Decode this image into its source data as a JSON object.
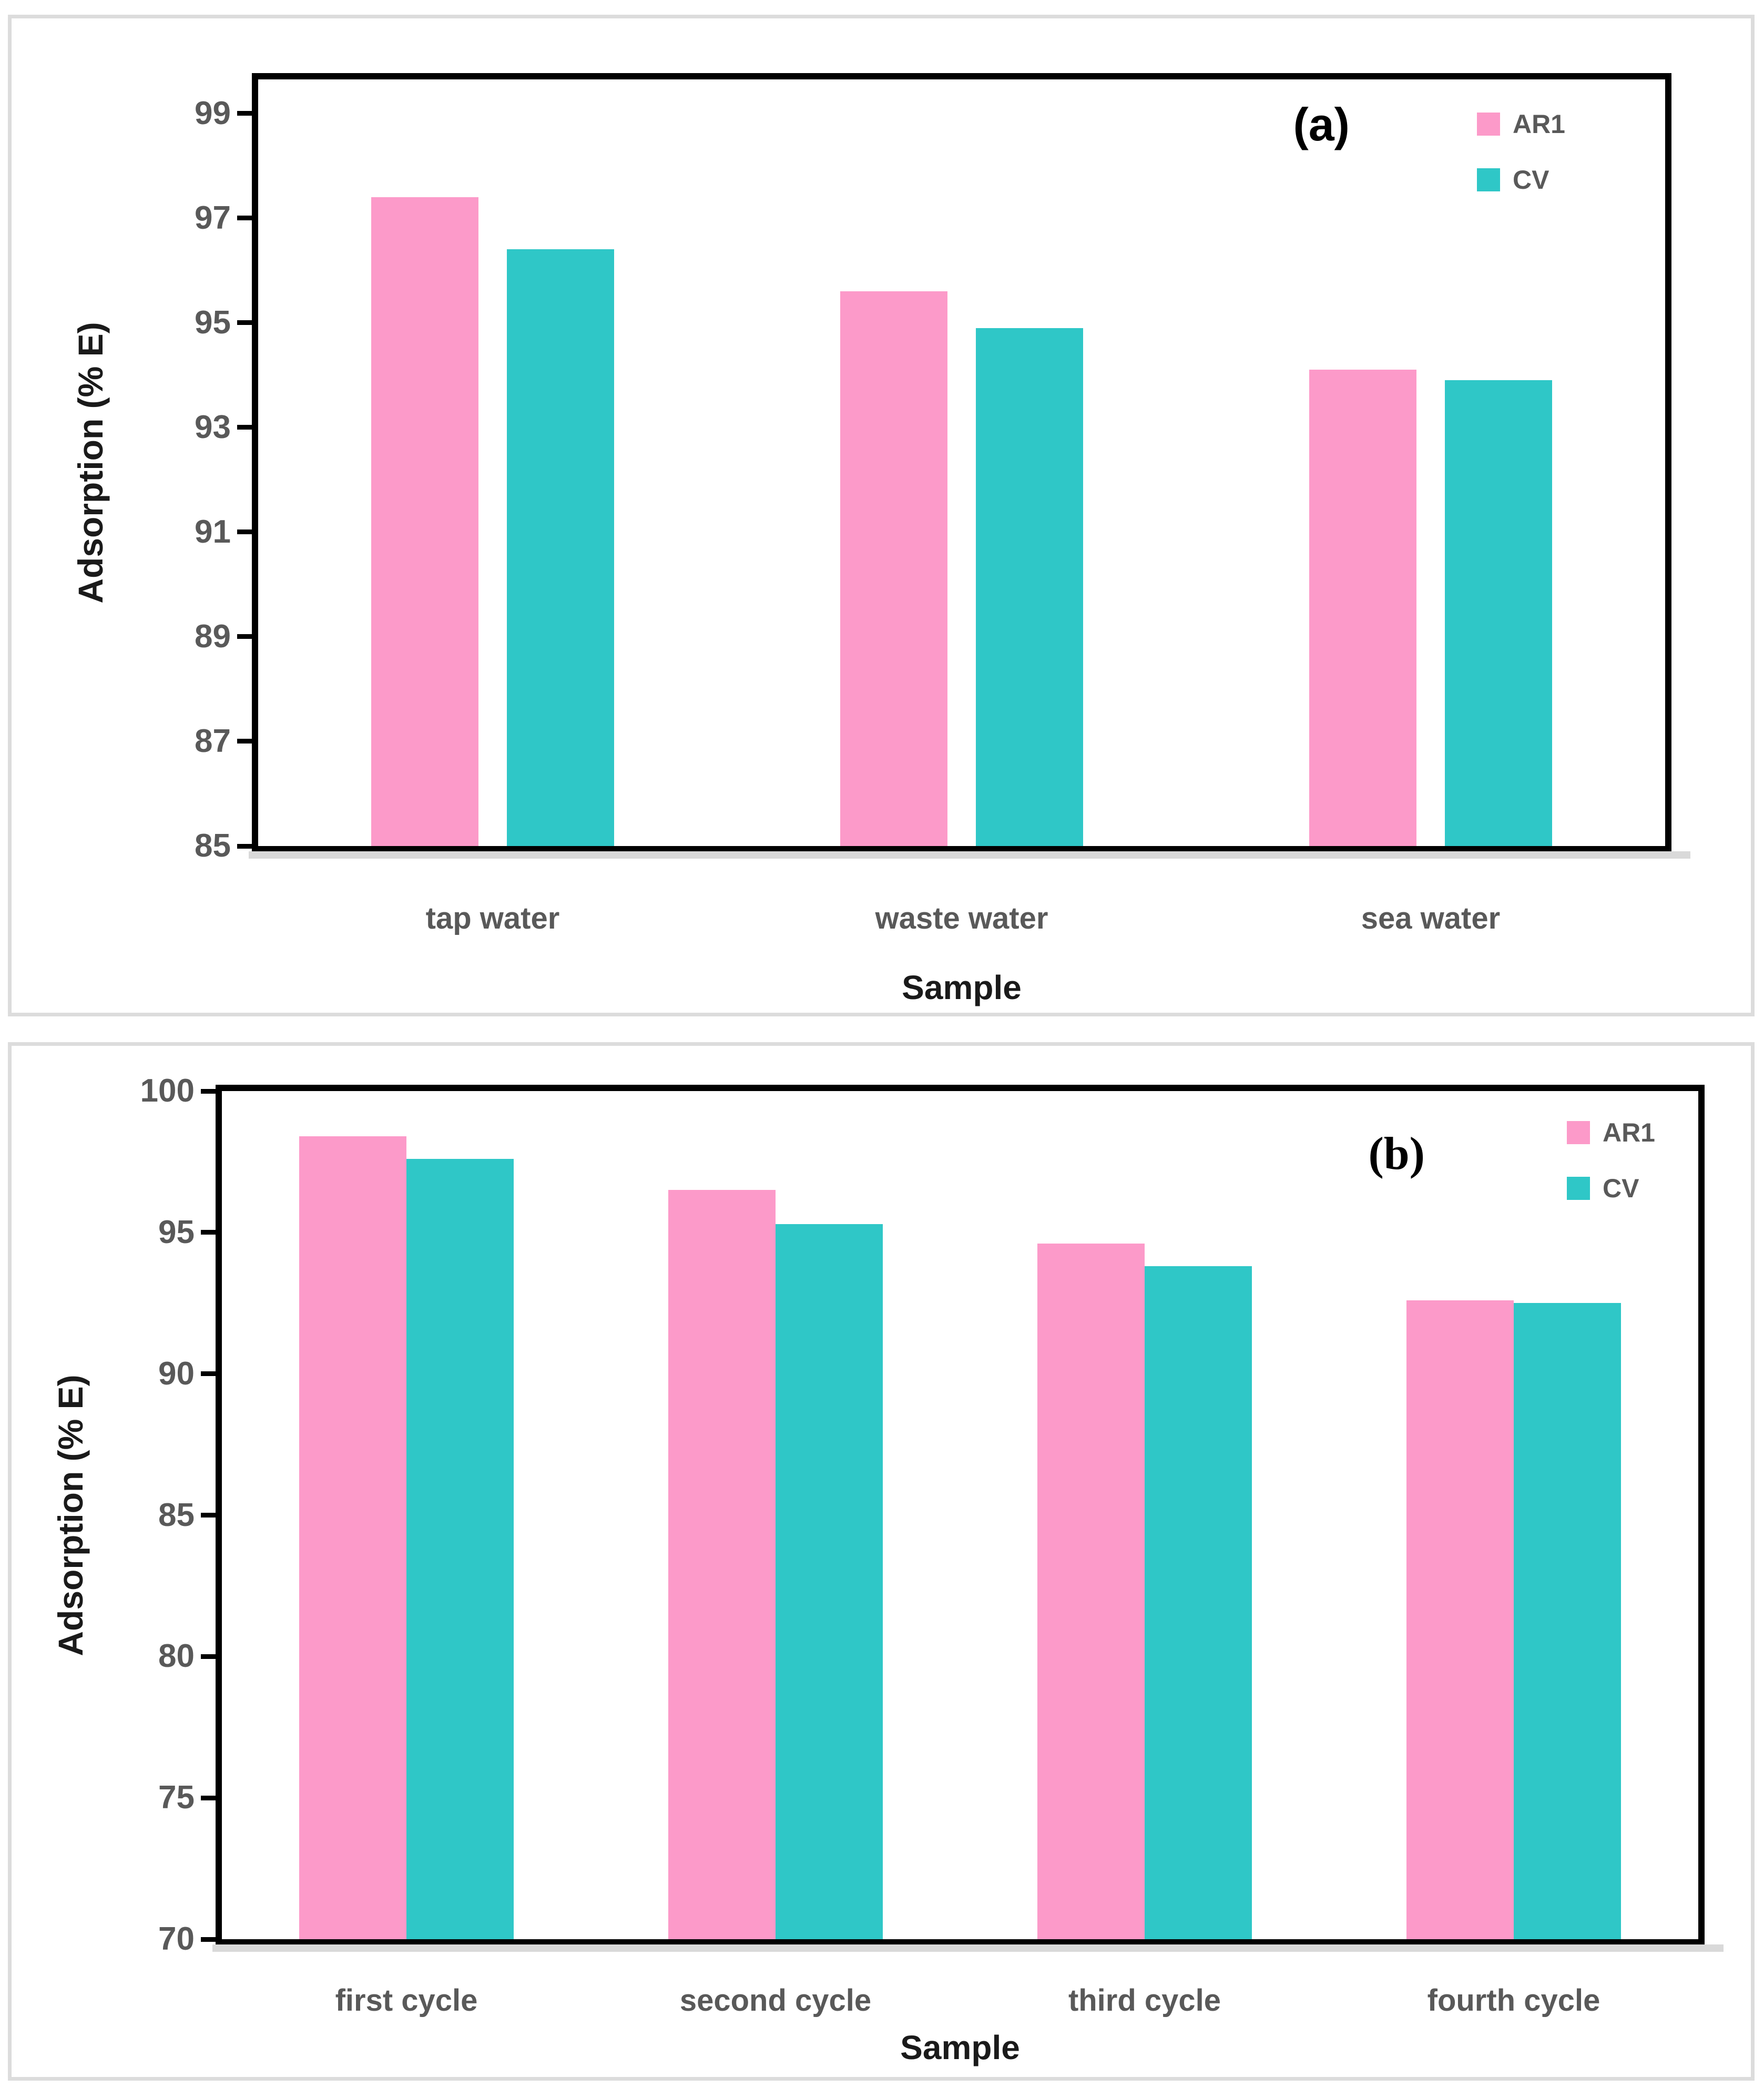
{
  "figure": {
    "panels": [
      {
        "label": "(a)"
      },
      {
        "label": "(b)"
      }
    ]
  },
  "colors": {
    "ar1_pink": "#FC9AC9",
    "cv_teal": "#2FC7C7",
    "tick_text": "#595959",
    "category_text": "#595959",
    "axis_title_text": "#1A1A1A",
    "plot_border": "#000000",
    "panel_frame": "#DCDCDC",
    "axis_shadow": "#D9D9D9"
  },
  "chart_data": [
    {
      "id": "a",
      "type": "bar",
      "panel_label": "(a)",
      "title": "",
      "xlabel": "Sample",
      "ylabel": "Adsorption (% E)",
      "categories": [
        "tap water",
        "waste water",
        "sea water"
      ],
      "series": [
        {
          "name": "AR1",
          "color": "#FC9AC9",
          "values": [
            97.4,
            95.6,
            94.1
          ]
        },
        {
          "name": "CV",
          "color": "#2FC7C7",
          "values": [
            96.4,
            94.9,
            93.9
          ]
        }
      ],
      "ylim": [
        85,
        99.65
      ],
      "yticks": [
        85,
        87,
        89,
        91,
        93,
        95,
        97,
        99
      ],
      "legend": [
        "AR1",
        "CV"
      ],
      "legend_position": "top-right",
      "grid": false
    },
    {
      "id": "b",
      "type": "bar",
      "panel_label": "(b)",
      "title": "",
      "xlabel": "Sample",
      "ylabel": "Adsorption (% E)",
      "categories": [
        "first cycle",
        "second cycle",
        "third cycle",
        "fourth cycle"
      ],
      "series": [
        {
          "name": "AR1",
          "color": "#FC9AC9",
          "values": [
            98.4,
            96.5,
            94.6,
            92.6
          ]
        },
        {
          "name": "CV",
          "color": "#2FC7C7",
          "values": [
            97.6,
            95.3,
            93.8,
            92.5
          ]
        }
      ],
      "ylim": [
        70,
        100
      ],
      "yticks": [
        70,
        75,
        80,
        85,
        90,
        95,
        100
      ],
      "legend": [
        "AR1",
        "CV"
      ],
      "legend_position": "top-right",
      "grid": false
    }
  ]
}
